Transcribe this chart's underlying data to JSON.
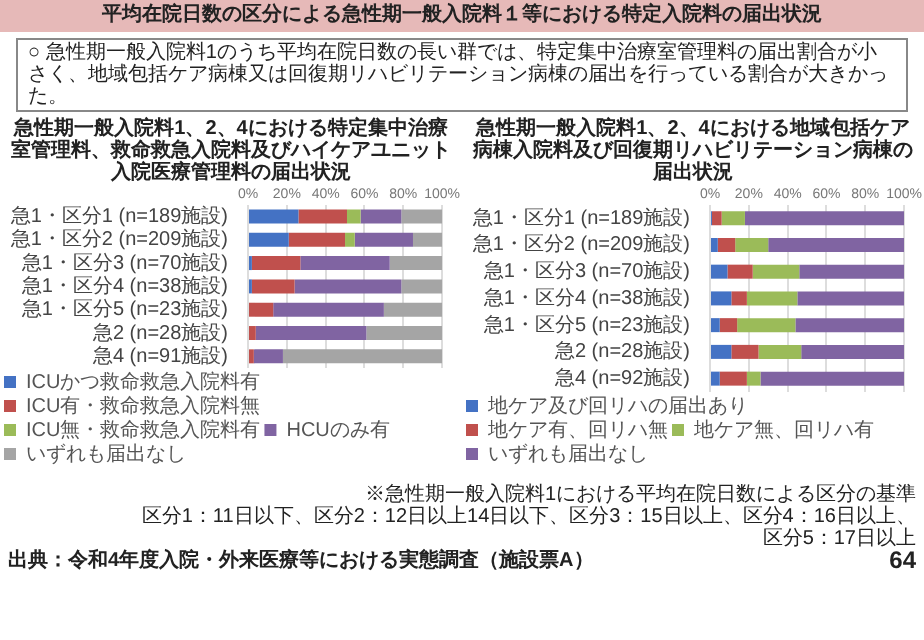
{
  "chart_data": [
    {
      "type": "bar",
      "orientation": "horizontal",
      "stacked": true,
      "title": "急性期一般入院料1、2、4における特定集中治療室管理料、救命救急入院料及びハイケアユニット入院医療管理料の届出状況",
      "annotations": [
        "平均在院日数の区分による急性期一般入院料１等における特定入院料の届出状況",
        "○ 急性期一般入院料1のうち平均在院日数の長い群では、特定集中治療室管理料の届出割合が小さく、地域包括ケア病棟又は回復期リハビリテーション病棟の届出を行っている割合が大きかった。",
        "出典：令和4年度入院・外来医療等における実態調査（施設票A）"
      ],
      "categories": [
        "急1・区分1 (n=189施設)",
        "急1・区分2 (n=209施設)",
        "急1・区分3 (n=70施設)",
        "急1・区分4 (n=38施設)",
        "急1・区分5 (n=23施設)",
        "急2 (n=28施設)",
        "急4 (n=91施設)"
      ],
      "series": [
        {
          "name": "ICUかつ救命救急入院料有",
          "color": "#4472c4",
          "values": [
            26,
            21,
            2,
            2,
            0,
            0,
            0
          ]
        },
        {
          "name": "ICU有・救命救急入院料無",
          "color": "#c0504d",
          "values": [
            25,
            29,
            25,
            22,
            13,
            4,
            3
          ]
        },
        {
          "name": "ICU無・救命救急入院料有",
          "color": "#9bbb59",
          "values": [
            7,
            5,
            0,
            0,
            0,
            0,
            0
          ]
        },
        {
          "name": "HCUのみ有",
          "color": "#8064a2",
          "values": [
            21,
            30,
            46,
            55,
            57,
            57,
            15
          ]
        },
        {
          "name": "いずれも届出なし",
          "color": "#a5a5a5",
          "values": [
            21,
            15,
            27,
            21,
            30,
            39,
            82
          ]
        }
      ],
      "xlim": [
        0,
        100
      ],
      "xticks": [
        {
          "value": 0,
          "label": "0%"
        },
        {
          "value": 20,
          "label": "20%"
        },
        {
          "value": 40,
          "label": "40%"
        },
        {
          "value": 60,
          "label": "60%"
        },
        {
          "value": 80,
          "label": "80%"
        },
        {
          "value": 100,
          "label": "100%"
        }
      ],
      "grid": "x",
      "legend": "bottom"
    },
    {
      "type": "bar",
      "orientation": "horizontal",
      "stacked": true,
      "title": "急性期一般入院料1、2、4における地域包括ケア病棟入院料及び回復期リハビリテーション病棟の届出状況",
      "annotations": [
        "※急性期一般入院料1における平均在院日数による区分の基準",
        "区分1：11日以下、区分2：12日以上14日以下、区分3：15日以上、区分4：16日以上、区分5：17日以上",
        "64"
      ],
      "categories": [
        "急1・区分1 (n=189施設)",
        "急1・区分2 (n=209施設)",
        "急1・区分3 (n=70施設)",
        "急1・区分4 (n=38施設)",
        "急1・区分5 (n=23施設)",
        "急2 (n=28施設)",
        "急4 (n=92施設)"
      ],
      "series": [
        {
          "name": "地ケア及び回リハの届出あり",
          "color": "#4472c4",
          "values": [
            1,
            4,
            9,
            11,
            5,
            11,
            5
          ]
        },
        {
          "name": "地ケア有、回リハ無",
          "color": "#c0504d",
          "values": [
            5,
            9,
            13,
            8,
            9,
            14,
            14
          ]
        },
        {
          "name": "地ケア無、回リハ有",
          "color": "#9bbb59",
          "values": [
            12,
            17,
            24,
            26,
            30,
            22,
            7
          ]
        },
        {
          "name": "いずれも届出なし",
          "color": "#8064a2",
          "values": [
            82,
            70,
            54,
            55,
            56,
            53,
            74
          ]
        }
      ],
      "xlim": [
        0,
        100
      ],
      "xticks": [
        {
          "value": 0,
          "label": "0%"
        },
        {
          "value": 20,
          "label": "20%"
        },
        {
          "value": 40,
          "label": "40%"
        },
        {
          "value": 60,
          "label": "60%"
        },
        {
          "value": 80,
          "label": "80%"
        },
        {
          "value": 100,
          "label": "100%"
        }
      ],
      "grid": "x",
      "legend": "bottom"
    }
  ]
}
